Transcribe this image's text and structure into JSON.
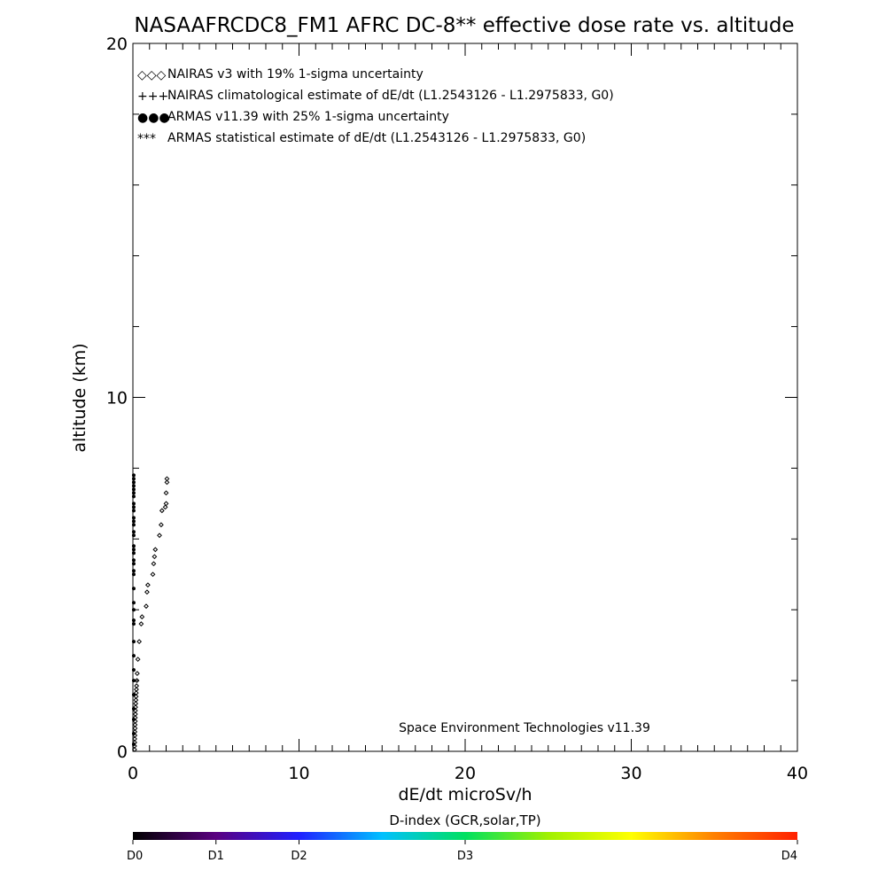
{
  "chart_data": {
    "type": "scatter",
    "title": "NASAAFRCDC8_FM1 AFRC DC-8** effective dose rate vs. altitude",
    "xlabel": "dE/dt microSv/h",
    "ylabel": "altitude (km)",
    "xlim": [
      0,
      40
    ],
    "ylim": [
      0,
      20
    ],
    "x_ticks": [
      {
        "value": 0,
        "label": "0"
      },
      {
        "value": 10,
        "label": "10"
      },
      {
        "value": 20,
        "label": "20"
      },
      {
        "value": 30,
        "label": "30"
      },
      {
        "value": 40,
        "label": "40"
      }
    ],
    "y_ticks": [
      {
        "value": 0,
        "label": "0"
      },
      {
        "value": 10,
        "label": "10"
      },
      {
        "value": 20,
        "label": "20"
      }
    ],
    "x_minor_step": 1,
    "y_minor_step": 2,
    "legend_position": "top-left",
    "legend": [
      {
        "symbol": "◇◇◇",
        "color": "#000000",
        "label": "NAIRAS v3 with 19% 1-sigma uncertainty"
      },
      {
        "symbol": "+++",
        "color": "#000000",
        "label": "NAIRAS climatological estimate of dE/dt (L1.2543126 - L1.2975833, G0)"
      },
      {
        "symbol": "●●●",
        "color": "#1a3fd0",
        "label": "ARMAS v11.39 with 25% 1-sigma uncertainty"
      },
      {
        "symbol": "***",
        "color": "#000000",
        "label": "ARMAS statistical estimate of dE/dt (L1.2543126 - L1.2975833, G0)"
      }
    ],
    "annotation": "Space Environment Technologies v11.39",
    "series": [
      {
        "name": "NAIRAS v3 with 19% 1-sigma uncertainty",
        "marker": "diamond",
        "color": "#000000",
        "points": [
          [
            0.1,
            0.05
          ],
          [
            0.1,
            0.15
          ],
          [
            0.11,
            0.25
          ],
          [
            0.11,
            0.35
          ],
          [
            0.12,
            0.45
          ],
          [
            0.12,
            0.55
          ],
          [
            0.13,
            0.65
          ],
          [
            0.13,
            0.75
          ],
          [
            0.14,
            0.85
          ],
          [
            0.14,
            0.95
          ],
          [
            0.15,
            1.05
          ],
          [
            0.15,
            1.15
          ],
          [
            0.16,
            1.25
          ],
          [
            0.17,
            1.35
          ],
          [
            0.18,
            1.45
          ],
          [
            0.19,
            1.55
          ],
          [
            0.2,
            1.65
          ],
          [
            0.21,
            1.75
          ],
          [
            0.22,
            1.85
          ],
          [
            0.24,
            2.0
          ],
          [
            0.26,
            2.2
          ],
          [
            0.3,
            2.6
          ],
          [
            0.38,
            3.1
          ],
          [
            0.5,
            3.6
          ],
          [
            0.55,
            3.8
          ],
          [
            0.8,
            4.1
          ],
          [
            0.85,
            4.5
          ],
          [
            0.9,
            4.7
          ],
          [
            1.2,
            5.0
          ],
          [
            1.25,
            5.3
          ],
          [
            1.3,
            5.5
          ],
          [
            1.35,
            5.7
          ],
          [
            1.6,
            6.1
          ],
          [
            1.7,
            6.4
          ],
          [
            1.75,
            6.8
          ],
          [
            1.95,
            6.9
          ],
          [
            2.0,
            7.0
          ],
          [
            2.0,
            7.3
          ],
          [
            2.05,
            7.6
          ],
          [
            2.05,
            7.7
          ]
        ]
      },
      {
        "name": "ARMAS v11.39 with 25% 1-sigma uncertainty",
        "marker": "dot",
        "color": "#000000",
        "points": [
          [
            0.05,
            0.2
          ],
          [
            0.05,
            0.5
          ],
          [
            0.05,
            0.9
          ],
          [
            0.05,
            1.2
          ],
          [
            0.05,
            1.6
          ],
          [
            0.05,
            2.0
          ],
          [
            0.05,
            2.3
          ],
          [
            0.05,
            2.7
          ],
          [
            0.05,
            3.1
          ],
          [
            0.05,
            3.6
          ],
          [
            0.05,
            3.7
          ],
          [
            0.05,
            4.0
          ],
          [
            0.05,
            4.2
          ],
          [
            0.05,
            4.6
          ],
          [
            0.05,
            5.0
          ],
          [
            0.05,
            5.1
          ],
          [
            0.05,
            5.3
          ],
          [
            0.05,
            5.4
          ],
          [
            0.05,
            5.6
          ],
          [
            0.05,
            5.7
          ],
          [
            0.05,
            5.8
          ],
          [
            0.05,
            6.1
          ],
          [
            0.05,
            6.2
          ],
          [
            0.05,
            6.4
          ],
          [
            0.05,
            6.5
          ],
          [
            0.05,
            6.6
          ],
          [
            0.05,
            6.8
          ],
          [
            0.05,
            6.9
          ],
          [
            0.05,
            7.0
          ],
          [
            0.05,
            7.2
          ],
          [
            0.05,
            7.3
          ],
          [
            0.05,
            7.4
          ],
          [
            0.05,
            7.5
          ],
          [
            0.05,
            7.6
          ],
          [
            0.05,
            7.7
          ],
          [
            0.05,
            7.8
          ]
        ]
      }
    ],
    "colorbar": {
      "title": "D-index (GCR,solar,TP)",
      "colors": [
        "#000000",
        "#5a0080",
        "#2020ff",
        "#00c0ff",
        "#00e060",
        "#a0f000",
        "#ffff00",
        "#ff8000",
        "#ff2000"
      ],
      "ticks": [
        {
          "pos": 0.0,
          "label": "D0"
        },
        {
          "pos": 0.125,
          "label": "D1"
        },
        {
          "pos": 0.25,
          "label": "D2"
        },
        {
          "pos": 0.5,
          "label": "D3"
        },
        {
          "pos": 1.0,
          "label": "D4"
        }
      ]
    }
  }
}
